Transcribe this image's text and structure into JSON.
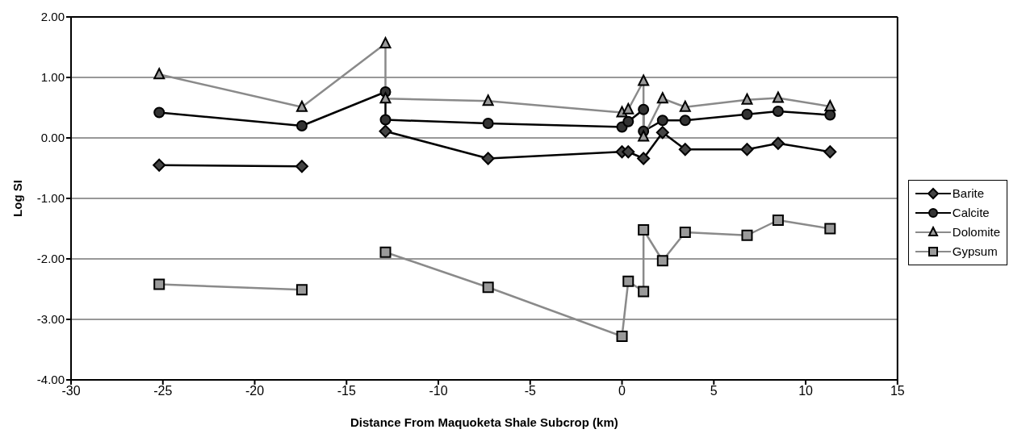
{
  "chart_data": {
    "type": "line",
    "xlabel": "Distance From Maquoketa Shale Subcrop (km)",
    "ylabel": "Log SI",
    "xlim": [
      -30,
      15
    ],
    "xticks": [
      -30,
      -25,
      -20,
      -15,
      -10,
      -5,
      0,
      5,
      10,
      15
    ],
    "ylim": [
      -4,
      2
    ],
    "yticks": [
      {
        "value": -4,
        "label": "-4.00"
      },
      {
        "value": -3,
        "label": "-3.00"
      },
      {
        "value": -2,
        "label": "-2.00"
      },
      {
        "value": -1,
        "label": "-1.00"
      },
      {
        "value": 0,
        "label": "0.00"
      },
      {
        "value": 1,
        "label": "1.00"
      },
      {
        "value": 2,
        "label": "2.00"
      }
    ],
    "grid": "y",
    "legend": "right",
    "line_style": "solid",
    "series": [
      {
        "name": "Barite",
        "color": "#000000",
        "marker": "diamond",
        "x": [
          -25.2,
          -17.43,
          null,
          -12.88,
          -7.29,
          0,
          0.34,
          1.17,
          2.21,
          3.44,
          6.81,
          8.5,
          11.33
        ],
        "values": [
          -0.45,
          -0.47,
          null,
          0.11,
          -0.34,
          -0.23,
          -0.23,
          -0.34,
          0.09,
          -0.19,
          -0.19,
          -0.09,
          -0.23
        ]
      },
      {
        "name": "Calcite",
        "color": "#000000",
        "marker": "circle",
        "x": [
          -25.2,
          -17.43,
          -12.88,
          -12.88,
          -7.29,
          0,
          0.34,
          1.17,
          1.17,
          2.21,
          3.44,
          6.81,
          8.5,
          11.33
        ],
        "values": [
          0.42,
          0.2,
          0.76,
          0.3,
          0.24,
          0.18,
          0.27,
          0.47,
          0.11,
          0.29,
          0.29,
          0.39,
          0.44,
          0.38
        ]
      },
      {
        "name": "Dolomite",
        "color": "#8a8a8a",
        "marker": "triangle",
        "x": [
          -25.2,
          -17.43,
          -12.88,
          -12.88,
          -7.29,
          0,
          0.34,
          1.17,
          1.17,
          2.21,
          3.44,
          6.81,
          8.5,
          11.33
        ],
        "values": [
          1.05,
          0.51,
          1.56,
          0.65,
          0.61,
          0.42,
          0.47,
          0.94,
          0.02,
          0.65,
          0.51,
          0.63,
          0.66,
          0.52
        ]
      },
      {
        "name": "Gypsum",
        "color": "#8a8a8a",
        "marker": "square",
        "x": [
          -25.2,
          -17.43,
          null,
          -12.88,
          -7.29,
          0,
          0.34,
          1.17,
          1.17,
          2.21,
          3.44,
          6.81,
          8.5,
          11.33
        ],
        "values": [
          -2.42,
          -2.51,
          null,
          -1.89,
          -2.47,
          -3.28,
          -2.37,
          -2.54,
          -1.52,
          -2.03,
          -1.56,
          -1.61,
          -1.36,
          -1.5
        ]
      }
    ]
  }
}
